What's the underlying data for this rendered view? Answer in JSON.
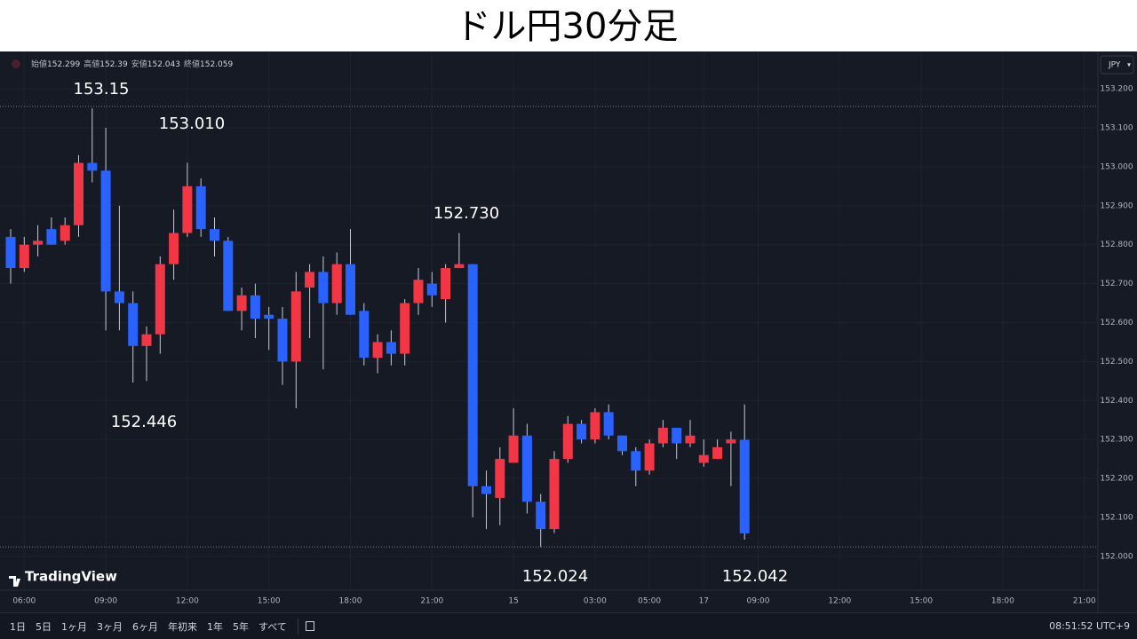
{
  "chart_data": {
    "type": "candlestick",
    "title": "ドル円30分足",
    "ohlc_header": {
      "labels": [
        "始値",
        "高値",
        "安値",
        "終値"
      ]
    },
    "categories": [
      null,
      "06:00",
      null,
      null,
      null,
      null,
      null,
      "09:00",
      null,
      null,
      null,
      null,
      null,
      "12:00",
      null,
      null,
      null,
      null,
      null,
      "15:00",
      null,
      null,
      null,
      null,
      null,
      "18:00",
      null,
      null,
      null,
      null,
      null,
      "21:00",
      null,
      null,
      null,
      null,
      null,
      "15",
      null,
      null,
      null,
      null,
      null,
      "03:00",
      null,
      null,
      null,
      "05:00",
      null,
      null,
      null,
      "17",
      null,
      null,
      null,
      "09:00",
      null,
      null,
      null,
      null,
      null,
      "12:00",
      null,
      null,
      null,
      null,
      null,
      "15:00",
      null,
      null,
      null,
      null,
      null,
      "18:00",
      null,
      null,
      null,
      null,
      null,
      "21:00"
    ],
    "open": [
      152.82,
      152.74,
      152.8,
      152.84,
      152.81,
      152.85,
      153.01,
      152.99,
      152.68,
      152.65,
      152.54,
      152.57,
      152.75,
      152.83,
      152.95,
      152.84,
      152.81,
      152.63,
      152.67,
      152.62,
      152.61,
      152.5,
      152.69,
      152.73,
      152.65,
      152.75,
      152.63,
      152.51,
      152.55,
      152.52,
      152.65,
      152.7,
      152.66,
      152.74,
      152.75,
      152.18,
      152.15,
      152.24,
      152.31,
      152.14,
      152.07,
      152.25,
      152.34,
      152.3,
      152.37,
      152.31,
      152.27,
      152.22,
      152.29,
      152.33,
      152.29,
      152.24,
      152.25,
      152.29,
      152.299,
      null,
      null,
      null,
      null,
      null,
      null,
      null,
      null,
      null,
      null,
      null,
      null,
      null,
      null,
      null,
      null,
      null,
      null,
      null,
      null,
      null,
      null,
      null,
      null,
      null
    ],
    "high": [
      152.84,
      152.82,
      152.85,
      152.87,
      152.87,
      153.03,
      153.15,
      153.1,
      152.9,
      152.68,
      152.59,
      152.77,
      152.89,
      153.01,
      152.97,
      152.87,
      152.82,
      152.69,
      152.7,
      152.64,
      152.64,
      152.73,
      152.75,
      152.77,
      152.78,
      152.84,
      152.65,
      152.57,
      152.58,
      152.66,
      152.74,
      152.73,
      152.75,
      152.83,
      152.75,
      152.22,
      152.28,
      152.38,
      152.34,
      152.16,
      152.27,
      152.36,
      152.35,
      152.38,
      152.39,
      152.31,
      152.28,
      152.3,
      152.35,
      152.33,
      152.35,
      152.3,
      152.3,
      152.32,
      152.39,
      null,
      null,
      null,
      null,
      null,
      null,
      null,
      null,
      null,
      null,
      null,
      null,
      null,
      null,
      null,
      null,
      null,
      null,
      null,
      null,
      null,
      null,
      null,
      null,
      null
    ],
    "low": [
      152.7,
      152.73,
      152.77,
      152.8,
      152.8,
      152.82,
      152.96,
      152.58,
      152.58,
      152.446,
      152.45,
      152.52,
      152.71,
      152.82,
      152.82,
      152.77,
      152.63,
      152.58,
      152.56,
      152.53,
      152.44,
      152.38,
      152.56,
      152.48,
      152.62,
      152.62,
      152.49,
      152.47,
      152.49,
      152.49,
      152.62,
      152.64,
      152.6,
      152.74,
      152.1,
      152.07,
      152.08,
      152.24,
      152.11,
      152.024,
      152.06,
      152.24,
      152.29,
      152.29,
      152.3,
      152.26,
      152.18,
      152.21,
      152.28,
      152.25,
      152.28,
      152.23,
      152.25,
      152.18,
      152.043,
      null,
      null,
      null,
      null,
      null,
      null,
      null,
      null,
      null,
      null,
      null,
      null,
      null,
      null,
      null,
      null,
      null,
      null,
      null,
      null,
      null,
      null,
      null,
      null,
      null
    ],
    "close": [
      152.74,
      152.8,
      152.81,
      152.8,
      152.85,
      153.01,
      152.99,
      152.68,
      152.65,
      152.54,
      152.57,
      152.75,
      152.83,
      152.95,
      152.84,
      152.81,
      152.63,
      152.67,
      152.61,
      152.61,
      152.5,
      152.68,
      152.73,
      152.65,
      152.75,
      152.62,
      152.51,
      152.55,
      152.52,
      152.65,
      152.71,
      152.67,
      152.74,
      152.75,
      152.18,
      152.16,
      152.25,
      152.31,
      152.14,
      152.07,
      152.25,
      152.34,
      152.3,
      152.37,
      152.31,
      152.27,
      152.22,
      152.29,
      152.33,
      152.29,
      152.31,
      152.26,
      152.28,
      152.3,
      152.059,
      null,
      null,
      null,
      null,
      null,
      null,
      null,
      null,
      null,
      null,
      null,
      null,
      null,
      null,
      null,
      null,
      null,
      null,
      null,
      null,
      null,
      null,
      null,
      null,
      null
    ],
    "up_color": "#f23645",
    "down_color": "#2962ff",
    "ylim": [
      151.913,
      153.296
    ],
    "yticks": [
      {
        "value": 152.0,
        "label": "152.000"
      },
      {
        "value": 152.1,
        "label": "152.100"
      },
      {
        "value": 152.2,
        "label": "152.200"
      },
      {
        "value": 152.3,
        "label": "152.300"
      },
      {
        "value": 152.4,
        "label": "152.400"
      },
      {
        "value": 152.5,
        "label": "152.500"
      },
      {
        "value": 152.6,
        "label": "152.600"
      },
      {
        "value": 152.7,
        "label": "152.700"
      },
      {
        "value": 152.8,
        "label": "152.800"
      },
      {
        "value": 152.9,
        "label": "152.900"
      },
      {
        "value": 153.0,
        "label": "153.000"
      },
      {
        "value": 153.1,
        "label": "153.100"
      },
      {
        "value": 153.2,
        "label": "153.200"
      }
    ],
    "grid": true,
    "hlines": [
      153.155,
      152.024
    ],
    "annotations": [
      "153.15",
      "153.010",
      "152.730",
      "152.446",
      "152.024",
      "152.042"
    ],
    "currency": "JPY",
    "brand": "TradingView"
  },
  "toolbar": {
    "ranges": [
      "1日",
      "5日",
      "1ヶ月",
      "3ヶ月",
      "6ヶ月",
      "年初来",
      "1年",
      "5年",
      "すべて"
    ],
    "clock": "08:51:52 UTC+9"
  }
}
